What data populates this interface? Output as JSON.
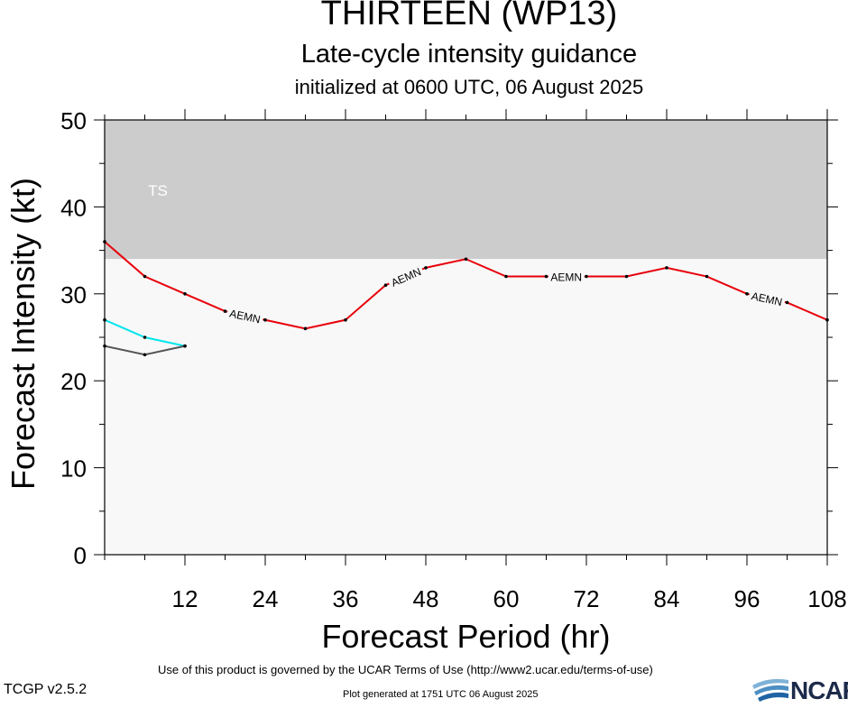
{
  "title": "THIRTEEN (WP13)",
  "subtitle": "Late-cycle intensity guidance",
  "subtitle2": "initialized at 0600 UTC, 06 August 2025",
  "footer": {
    "terms": "Use of this product is governed by the UCAR Terms of Use (http://www2.ucar.edu/terms-of-use)",
    "version": "TCGP v2.5.2",
    "generated": "Plot generated at 1751 UTC   06 August 2025",
    "logo": "NCAR"
  },
  "chart_data": {
    "type": "line",
    "xlabel": "Forecast Period (hr)",
    "ylabel": "Forecast Intensity (kt)",
    "xlim": [
      0,
      108
    ],
    "ylim": [
      0,
      50
    ],
    "xticks": [
      12,
      24,
      36,
      48,
      60,
      72,
      84,
      96,
      108
    ],
    "yticks": [
      0,
      10,
      20,
      30,
      40,
      50
    ],
    "bands": [
      {
        "label": "TS",
        "from": 34,
        "to": 50,
        "color": "#cccccc"
      },
      {
        "label": "",
        "from": 0,
        "to": 34,
        "color": "#f8f8f8"
      }
    ],
    "series": [
      {
        "name": "AEMN",
        "color": "#e8000b",
        "x": [
          0,
          6,
          12,
          18,
          24,
          30,
          36,
          42,
          48,
          54,
          60,
          66,
          72,
          78,
          84,
          90,
          96,
          102,
          108
        ],
        "y": [
          36,
          32,
          30,
          28,
          27,
          26,
          27,
          31,
          33,
          34,
          32,
          32,
          32,
          32,
          33,
          32,
          30,
          29,
          27
        ],
        "label_at": [
          21,
          45,
          69,
          99
        ]
      },
      {
        "name": "",
        "color": "#00e5ee",
        "x": [
          0,
          6,
          12
        ],
        "y": [
          27,
          25,
          24
        ],
        "label_at": []
      },
      {
        "name": "",
        "color": "#555555",
        "x": [
          0,
          6,
          12
        ],
        "y": [
          24,
          23,
          24
        ],
        "label_at": []
      }
    ]
  }
}
